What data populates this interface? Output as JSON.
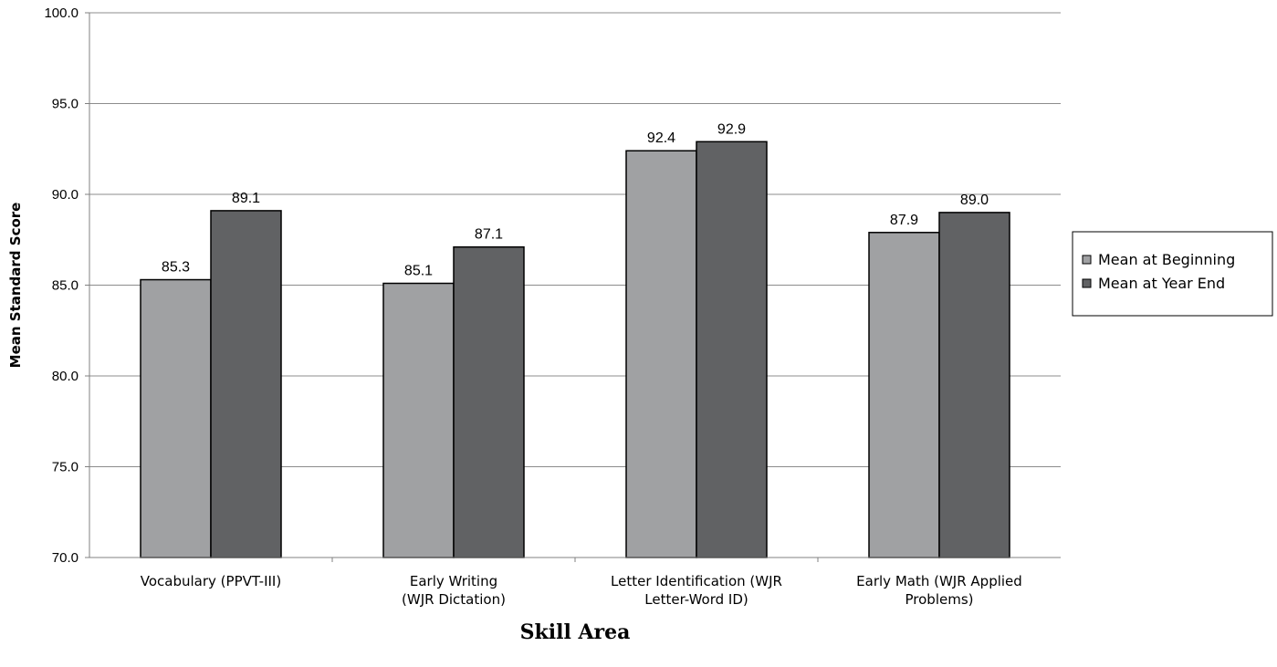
{
  "chart_data": {
    "type": "bar",
    "categories": [
      [
        "Vocabulary (PPVT-III)"
      ],
      [
        "Early Writing",
        "(WJR Dictation)"
      ],
      [
        "Letter Identification (WJR",
        "Letter-Word ID)"
      ],
      [
        "Early Math (WJR Applied",
        "Problems)"
      ]
    ],
    "series": [
      {
        "name": "Mean at Beginning",
        "values": [
          85.3,
          85.1,
          92.4,
          87.9
        ],
        "color": "#a0a1a3"
      },
      {
        "name": "Mean at Year End",
        "values": [
          89.1,
          87.1,
          92.9,
          89.0
        ],
        "color": "#616264"
      }
    ],
    "xlabel": "Skill Area",
    "ylabel": "Mean Standard Score",
    "ylim": [
      70,
      100
    ],
    "yticks": [
      70,
      75,
      80,
      85,
      90,
      95,
      100
    ],
    "grid": true,
    "legend_position": "right"
  }
}
